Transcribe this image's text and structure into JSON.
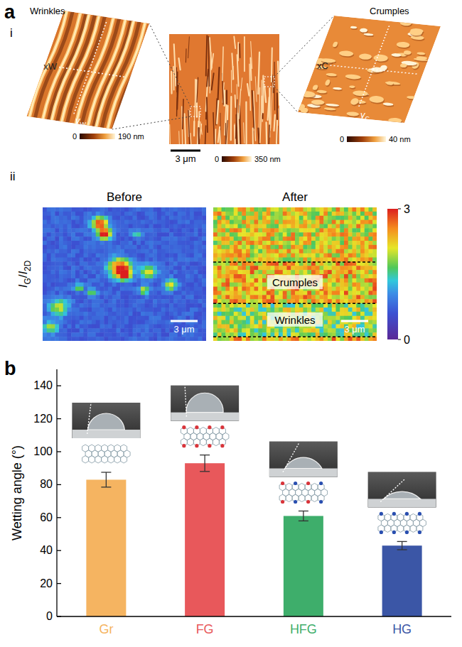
{
  "panel_a": {
    "label": "a",
    "row_i": {
      "label": "i",
      "wrinkles": {
        "title": "Wrinkles",
        "x_label": [
          "x",
          "W"
        ],
        "y_label": [
          "y",
          "W"
        ],
        "colorbar": {
          "range": [
            0,
            190
          ],
          "ticks": [
            0,
            {
              "value": 190,
              "label": "190 nm"
            }
          ]
        }
      },
      "overview": {
        "scale_bar": "3 μm",
        "colorbar": {
          "range": [
            0,
            350
          ],
          "ticks": [
            0,
            {
              "value": 350,
              "label": "350 nm"
            }
          ]
        }
      },
      "crumples": {
        "title": "Crumples",
        "x_label": [
          "x",
          "C"
        ],
        "y_label": [
          "y",
          "C"
        ],
        "colorbar": {
          "range": [
            0,
            40
          ],
          "ticks": [
            0,
            {
              "value": 40,
              "label": "40 nm"
            }
          ]
        }
      }
    },
    "row_ii": {
      "label": "ii",
      "y_label": [
        [
          "I",
          "G"
        ],
        "/",
        [
          "I",
          "2D"
        ]
      ],
      "maps": [
        {
          "title": "Before",
          "scale_bar": "3 μm"
        },
        {
          "title": "After",
          "scale_bar": "3 μm",
          "regions": [
            "Crumples",
            "Wrinkles"
          ]
        }
      ],
      "colorbar": {
        "range": [
          0,
          3
        ],
        "ticks": [
          0,
          3
        ]
      }
    }
  },
  "panel_b": {
    "label": "b"
  },
  "chart_data": {
    "type": "bar",
    "categories": [
      "Gr",
      "FG",
      "HFG",
      "HG"
    ],
    "values": [
      83,
      93,
      61,
      43
    ],
    "errors": [
      4.5,
      5,
      3,
      2.5
    ],
    "colors": [
      "#f5b461",
      "#e8585b",
      "#3eae6b",
      "#3b56a6"
    ],
    "ylabel": "Wetting angle (°)",
    "ylim": [
      0,
      150
    ],
    "yticks": [
      0,
      20,
      40,
      60,
      80,
      100,
      120,
      140
    ],
    "grid": false
  }
}
